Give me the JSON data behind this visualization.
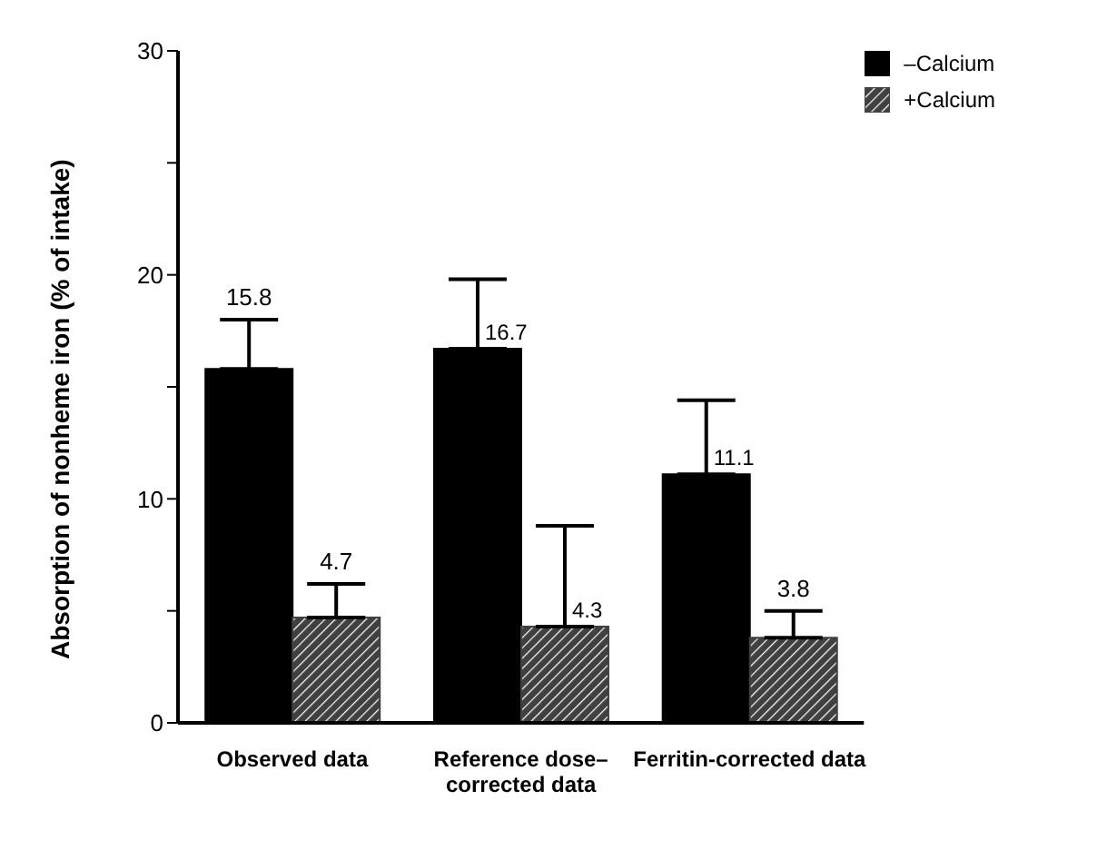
{
  "chart_data": {
    "type": "bar",
    "ylabel": "Absorption of nonheme iron (% of intake)",
    "categories": [
      "Observed data",
      "Reference dose–corrected data",
      "Ferritin-corrected data"
    ],
    "series": [
      {
        "name": "–Calcium",
        "color": "#000000",
        "values": [
          15.8,
          16.7,
          11.1
        ],
        "errors": [
          [
            15.8,
            18.0
          ],
          [
            16.7,
            19.8
          ],
          [
            11.1,
            14.4
          ]
        ]
      },
      {
        "name": "+Calcium",
        "color": "#404040",
        "values": [
          4.7,
          4.3,
          3.8
        ],
        "errors": [
          [
            4.7,
            6.2
          ],
          [
            4.3,
            8.8
          ],
          [
            3.8,
            5.0
          ]
        ]
      }
    ],
    "ylim": [
      0,
      30
    ],
    "yticks": [
      0,
      {
        "value": 5,
        "label": null
      },
      10,
      {
        "value": 15,
        "label": null
      },
      20,
      {
        "value": 25,
        "label": null
      },
      30
    ],
    "data_labels": true,
    "grid": false,
    "legend": "top right"
  }
}
